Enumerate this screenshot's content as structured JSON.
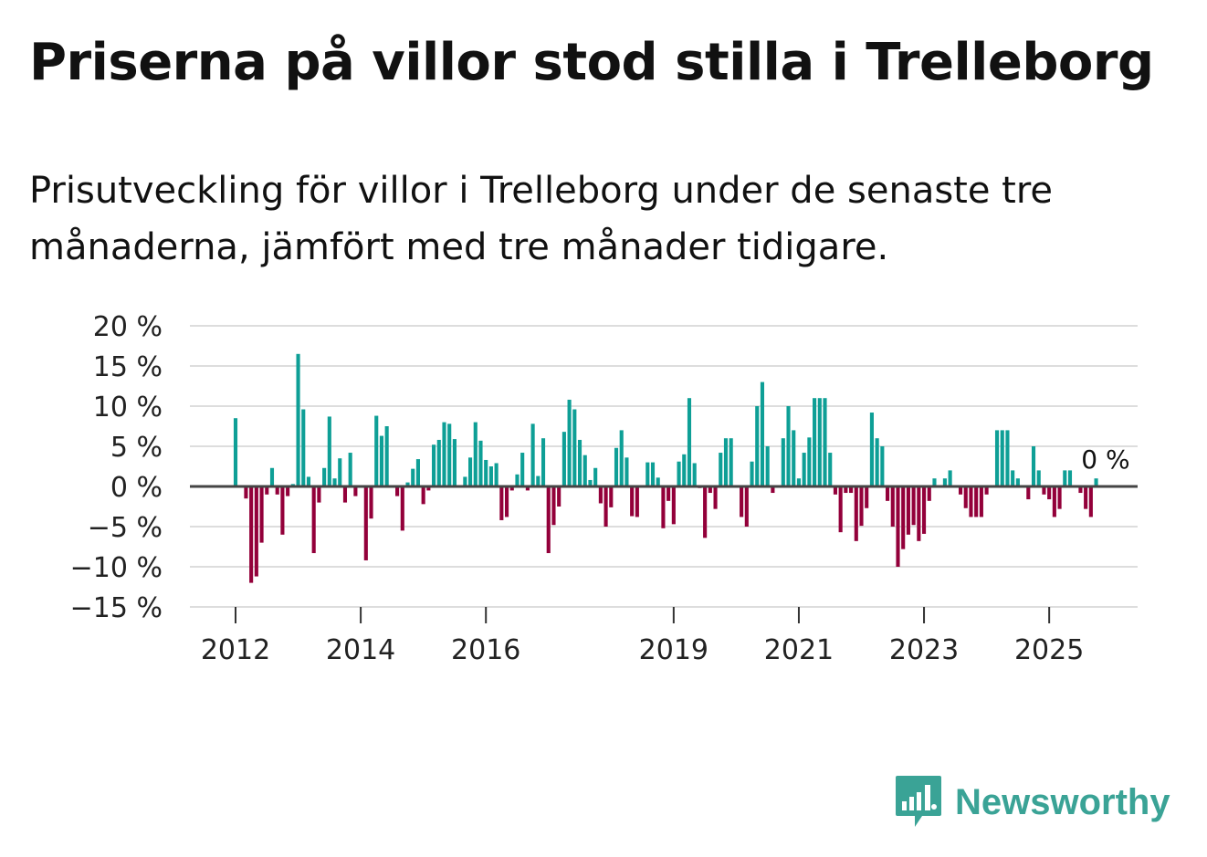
{
  "title": "Priserna på villor stod stilla i Trelleborg",
  "subtitle": "Prisutveckling för villor i Trelleborg under de senaste tre månaderna, jämfört med tre månader tidigare.",
  "brand": {
    "name": "Newsworthy",
    "color": "#3aa396",
    "icon": "bar-chart-speech-bubble-icon"
  },
  "colors": {
    "positive": "#0e9f96",
    "negative": "#93003a",
    "zero_line": "#444444",
    "grid": "#dddddd"
  },
  "chart_data": {
    "type": "bar",
    "title": "Priserna på villor stod stilla i Trelleborg",
    "xlabel": "",
    "ylabel": "",
    "ylim": [
      -15,
      20
    ],
    "yticks": [
      20,
      15,
      10,
      5,
      0,
      -5,
      -10,
      -15
    ],
    "ytick_labels": [
      "20 %",
      "15 %",
      "10 %",
      "5 %",
      "0 %",
      "−5 %",
      "−10 %",
      "−15 %"
    ],
    "x_start": 2012.0,
    "x_step_months": 1,
    "xticks": [
      2012,
      2014,
      2016,
      2019,
      2021,
      2023,
      2025
    ],
    "xtick_labels": [
      "2012",
      "2014",
      "2016",
      "2019",
      "2021",
      "2023",
      "2025"
    ],
    "end_label": "0 %",
    "values": [
      8.5,
      0,
      -1.5,
      -12,
      -11.2,
      -7,
      -1,
      2.3,
      -1,
      -6,
      -1.2,
      0.3,
      16.5,
      9.6,
      1.2,
      -8.3,
      -2,
      2.3,
      8.7,
      1,
      3.5,
      -2,
      4.2,
      -1.2,
      0,
      -9.2,
      -4,
      8.8,
      6.3,
      7.5,
      0,
      -1.2,
      -5.5,
      0.5,
      2.2,
      3.4,
      -2.2,
      -0.5,
      5.2,
      5.8,
      8,
      7.8,
      5.9,
      0,
      1.2,
      3.6,
      8,
      5.7,
      3.3,
      2.5,
      2.9,
      -4.2,
      -3.8,
      -0.5,
      1.5,
      4.2,
      -0.5,
      7.8,
      1.3,
      6,
      -8.3,
      -4.8,
      -2.5,
      6.8,
      10.8,
      9.6,
      5.8,
      3.9,
      0.8,
      2.3,
      -2.1,
      -5,
      -2.6,
      4.8,
      7,
      3.6,
      -3.7,
      -3.8,
      0,
      3,
      3,
      1.1,
      -5.2,
      -1.8,
      -4.7,
      3.1,
      4,
      11,
      2.9,
      -0.2,
      -6.4,
      -0.8,
      -2.8,
      4.2,
      6,
      6,
      0,
      -3.8,
      -5,
      3.1,
      10,
      13,
      5,
      -0.8,
      0,
      6,
      10,
      7,
      1,
      4.2,
      6.1,
      11,
      11,
      11,
      4.2,
      -1,
      -5.7,
      -0.8,
      -0.8,
      -6.8,
      -4.9,
      -2.7,
      9.2,
      6,
      5,
      -1.8,
      -5,
      -10,
      -7.8,
      -6,
      -4.8,
      -6.8,
      -5.9,
      -1.8,
      1,
      0,
      1,
      2,
      0,
      -1,
      -2.7,
      -3.8,
      -3.8,
      -3.8,
      -1,
      0,
      7,
      7,
      7,
      2,
      1,
      0,
      -1.6,
      5,
      2,
      -1,
      -1.6,
      -3.8,
      -2.8,
      2,
      2,
      0,
      -0.8,
      -2.8,
      -3.8,
      1,
      0
    ]
  }
}
